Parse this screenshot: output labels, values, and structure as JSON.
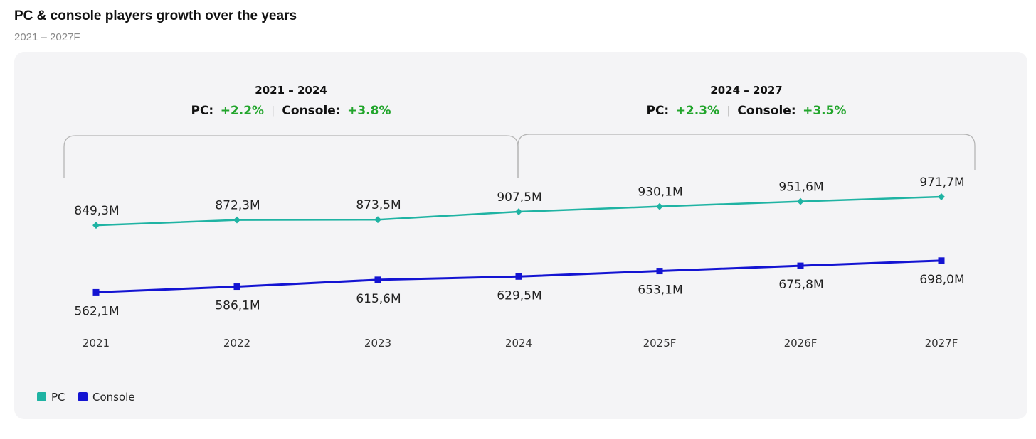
{
  "header": {
    "title": "PC & console players growth over the years",
    "subtitle": "2021 – 2027F"
  },
  "periods": [
    {
      "label": "2021 – 2024",
      "pc_label": "PC:",
      "pc_growth": "+2.2%",
      "console_label": "Console:",
      "console_growth": "+3.8%"
    },
    {
      "label": "2024 – 2027",
      "pc_label": "PC:",
      "pc_growth": "+2.3%",
      "console_label": "Console:",
      "console_growth": "+3.5%"
    }
  ],
  "chart_data": {
    "type": "line",
    "x": [
      "2021",
      "2022",
      "2023",
      "2024",
      "2025F",
      "2026F",
      "2027F"
    ],
    "series": [
      {
        "name": "PC",
        "color": "#1fb3a3",
        "marker": "diamond",
        "values": [
          849.3,
          872.3,
          873.5,
          907.5,
          930.1,
          951.6,
          971.7
        ],
        "labels": [
          "849,3M",
          "872,3M",
          "873,5M",
          "907,5M",
          "930,1M",
          "951,6M",
          "971,7M"
        ]
      },
      {
        "name": "Console",
        "color": "#1414d2",
        "marker": "square",
        "values": [
          562.1,
          586.1,
          615.6,
          629.5,
          653.1,
          675.8,
          698.0
        ],
        "labels": [
          "562,1M",
          "586,1M",
          "615,6M",
          "629,5M",
          "653,1M",
          "675,8M",
          "698,0M"
        ]
      }
    ],
    "grid": false,
    "legend": "bottom-left"
  }
}
